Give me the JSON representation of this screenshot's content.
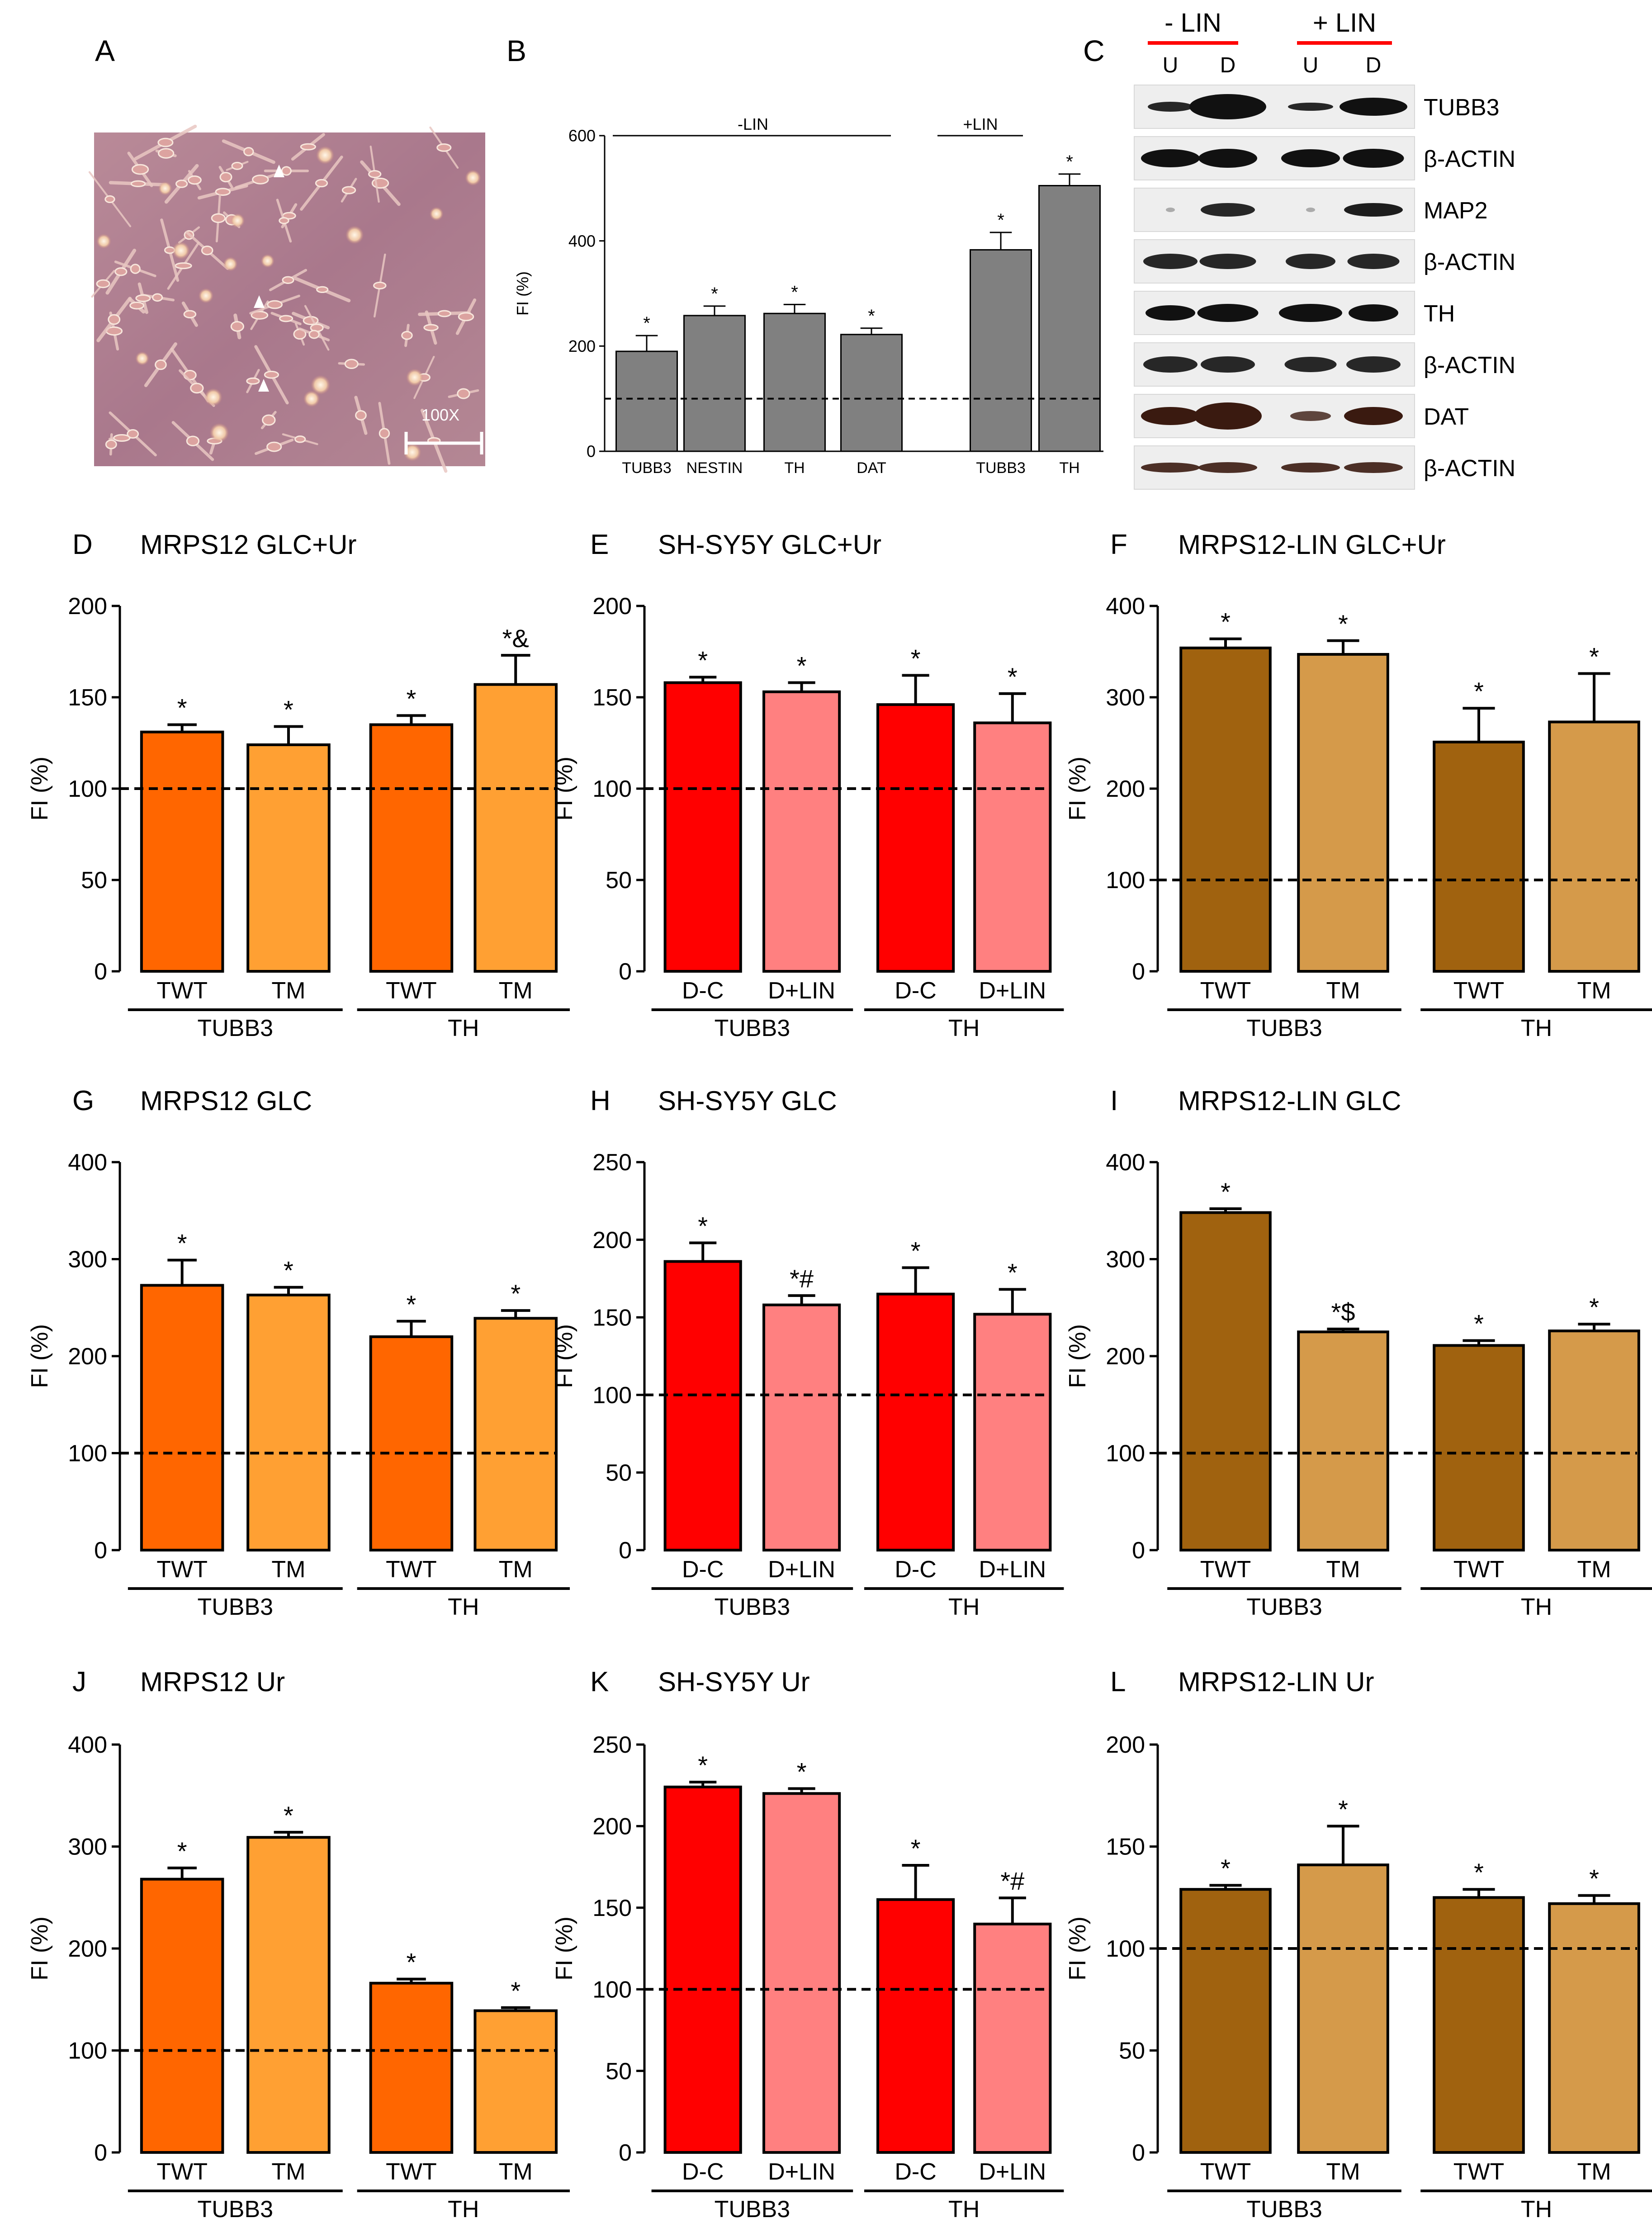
{
  "panel_letters": {
    "A": "A",
    "B": "B",
    "C": "C",
    "D": "D",
    "E": "E",
    "F": "F",
    "G": "G",
    "H": "H",
    "I": "I",
    "J": "J",
    "K": "K",
    "L": "L"
  },
  "colors": {
    "gray": "#808080",
    "orange_dark": "#ff6600",
    "orange_light": "#ffa033",
    "red": "#ff0000",
    "pink": "#ff8080",
    "brown_dark": "#a0620f",
    "brown_light": "#d59a4a",
    "blot_red_line": "#ff0000"
  },
  "micrograph": {
    "scale_label": "100X",
    "arrowheads": 3
  },
  "western_blot": {
    "groups": [
      "- LIN",
      "+ LIN"
    ],
    "lanes": [
      "U",
      "D",
      "U",
      "D"
    ],
    "rows": [
      "TUBB3",
      "β-ACTIN",
      "MAP2",
      "β-ACTIN",
      "TH",
      "β-ACTIN",
      "DAT",
      "β-ACTIN"
    ]
  },
  "chart_data": [
    {
      "panel": "B",
      "type": "bar",
      "title": "",
      "ylabel": "FI (%)",
      "ylim": [
        0,
        600
      ],
      "yticks": [
        0,
        200,
        400,
        600
      ],
      "baseline": 100,
      "color_key": "gray",
      "categories": [
        "TUBB3",
        "NESTIN",
        "TH",
        "DAT",
        "TUBB3",
        "TH"
      ],
      "values": [
        190,
        258,
        262,
        222,
        383,
        505
      ],
      "errors": [
        30,
        18,
        17,
        12,
        33,
        22
      ],
      "annotations": [
        "*",
        "*",
        "*",
        "*",
        "*",
        "*"
      ],
      "groups": [
        {
          "label": "-LIN",
          "span": [
            0,
            3
          ]
        },
        {
          "label": "+LIN",
          "span": [
            4,
            5
          ]
        }
      ]
    },
    {
      "panel": "D",
      "type": "bar",
      "title": "MRPS12 GLC+Ur",
      "ylabel": "FI (%)",
      "ylim": [
        0,
        200
      ],
      "yticks": [
        0,
        50,
        100,
        150,
        200
      ],
      "baseline": 100,
      "colors": [
        "orange_dark",
        "orange_light"
      ],
      "categories": [
        "TWT",
        "TM",
        "TWT",
        "TM"
      ],
      "groups": [
        "TUBB3",
        "TH"
      ],
      "values": [
        131,
        124,
        135,
        157
      ],
      "errors": [
        4,
        10,
        5,
        16
      ],
      "annotations": [
        "*",
        "*",
        "*",
        "*&"
      ]
    },
    {
      "panel": "E",
      "type": "bar",
      "title": "SH-SY5Y GLC+Ur",
      "ylabel": "FI (%)",
      "ylim": [
        0,
        200
      ],
      "yticks": [
        0,
        50,
        100,
        150,
        200
      ],
      "baseline": 100,
      "colors": [
        "red",
        "pink"
      ],
      "categories": [
        "D-C",
        "D+LIN",
        "D-C",
        "D+LIN"
      ],
      "groups": [
        "TUBB3",
        "TH"
      ],
      "values": [
        158,
        153,
        146,
        136
      ],
      "errors": [
        3,
        5,
        16,
        16
      ],
      "annotations": [
        "*",
        "*",
        "*",
        "*"
      ]
    },
    {
      "panel": "F",
      "type": "bar",
      "title": "MRPS12-LIN GLC+Ur",
      "ylabel": "FI (%)",
      "ylim": [
        0,
        400
      ],
      "yticks": [
        0,
        100,
        200,
        300,
        400
      ],
      "baseline": 100,
      "colors": [
        "brown_dark",
        "brown_light"
      ],
      "categories": [
        "TWT",
        "TM",
        "TWT",
        "TM"
      ],
      "groups": [
        "TUBB3",
        "TH"
      ],
      "values": [
        354,
        347,
        251,
        273
      ],
      "errors": [
        10,
        15,
        37,
        53
      ],
      "annotations": [
        "*",
        "*",
        "*",
        "*"
      ]
    },
    {
      "panel": "G",
      "type": "bar",
      "title": "MRPS12 GLC",
      "ylabel": "FI (%)",
      "ylim": [
        0,
        400
      ],
      "yticks": [
        0,
        100,
        200,
        300,
        400
      ],
      "baseline": 100,
      "colors": [
        "orange_dark",
        "orange_light"
      ],
      "categories": [
        "TWT",
        "TM",
        "TWT",
        "TM"
      ],
      "groups": [
        "TUBB3",
        "TH"
      ],
      "values": [
        273,
        263,
        220,
        239
      ],
      "errors": [
        26,
        8,
        16,
        8
      ],
      "annotations": [
        "*",
        "*",
        "*",
        "*"
      ]
    },
    {
      "panel": "H",
      "type": "bar",
      "title": "SH-SY5Y GLC",
      "ylabel": "FI (%)",
      "ylim": [
        0,
        250
      ],
      "yticks": [
        0,
        50,
        100,
        150,
        200,
        250
      ],
      "baseline": 100,
      "colors": [
        "red",
        "pink"
      ],
      "categories": [
        "D-C",
        "D+LIN",
        "D-C",
        "D+LIN"
      ],
      "groups": [
        "TUBB3",
        "TH"
      ],
      "values": [
        186,
        158,
        165,
        152
      ],
      "errors": [
        12,
        6,
        17,
        16
      ],
      "annotations": [
        "*",
        "*#",
        "*",
        "*"
      ]
    },
    {
      "panel": "I",
      "type": "bar",
      "title": "MRPS12-LIN GLC",
      "ylabel": "FI (%)",
      "ylim": [
        0,
        400
      ],
      "yticks": [
        0,
        100,
        200,
        300,
        400
      ],
      "baseline": 100,
      "colors": [
        "brown_dark",
        "brown_light"
      ],
      "categories": [
        "TWT",
        "TM",
        "TWT",
        "TM"
      ],
      "groups": [
        "TUBB3",
        "TH"
      ],
      "values": [
        348,
        225,
        211,
        226
      ],
      "errors": [
        4,
        3,
        5,
        7
      ],
      "annotations": [
        "*",
        "*$",
        "*",
        "*"
      ]
    },
    {
      "panel": "J",
      "type": "bar",
      "title": "MRPS12 Ur",
      "ylabel": "FI (%)",
      "ylim": [
        0,
        400
      ],
      "yticks": [
        0,
        100,
        200,
        300,
        400
      ],
      "baseline": 100,
      "colors": [
        "orange_dark",
        "orange_light"
      ],
      "categories": [
        "TWT",
        "TM",
        "TWT",
        "TM"
      ],
      "groups": [
        "TUBB3",
        "TH"
      ],
      "values": [
        268,
        309,
        166,
        139
      ],
      "errors": [
        11,
        5,
        4,
        3
      ],
      "annotations": [
        "*",
        "*",
        "*",
        "*"
      ]
    },
    {
      "panel": "K",
      "type": "bar",
      "title": "SH-SY5Y Ur",
      "ylabel": "FI (%)",
      "ylim": [
        0,
        250
      ],
      "yticks": [
        0,
        50,
        100,
        150,
        200,
        250
      ],
      "baseline": 100,
      "colors": [
        "red",
        "pink"
      ],
      "categories": [
        "D-C",
        "D+LIN",
        "D-C",
        "D+LIN"
      ],
      "groups": [
        "TUBB3",
        "TH"
      ],
      "values": [
        224,
        220,
        155,
        140
      ],
      "errors": [
        3,
        3,
        21,
        16
      ],
      "annotations": [
        "*",
        "*",
        "*",
        "*#"
      ]
    },
    {
      "panel": "L",
      "type": "bar",
      "title": "MRPS12-LIN Ur",
      "ylabel": "FI (%)",
      "ylim": [
        0,
        200
      ],
      "yticks": [
        0,
        50,
        100,
        150,
        200
      ],
      "baseline": 100,
      "colors": [
        "brown_dark",
        "brown_light"
      ],
      "categories": [
        "TWT",
        "TM",
        "TWT",
        "TM"
      ],
      "groups": [
        "TUBB3",
        "TH"
      ],
      "values": [
        129,
        141,
        125,
        122
      ],
      "errors": [
        2,
        19,
        4,
        4
      ],
      "annotations": [
        "*",
        "*",
        "*",
        "*"
      ]
    }
  ]
}
